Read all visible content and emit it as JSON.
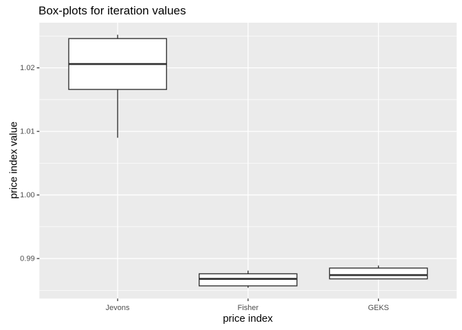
{
  "title": "Box-plots for iteration values",
  "x_axis": {
    "title": "price index",
    "tick_labels": [
      "Jevons",
      "Fisher",
      "GEKS"
    ]
  },
  "y_axis": {
    "title": "price index value",
    "tick_labels": [
      "0.99",
      "1.00",
      "1.01",
      "1.02"
    ],
    "tick_values": [
      0.99,
      1.0,
      1.01,
      1.02
    ],
    "minor_tick_values": [
      0.985,
      0.995,
      1.005,
      1.015,
      1.025
    ]
  },
  "chart_data": {
    "type": "boxplot",
    "title": "Box-plots for iteration values",
    "xlabel": "price index",
    "ylabel": "price index value",
    "categories": [
      "Jevons",
      "Fisher",
      "GEKS"
    ],
    "ylim": [
      0.9837,
      1.0271
    ],
    "grid": true,
    "legend": false,
    "series": [
      {
        "name": "Jevons",
        "whisker_low": 1.009,
        "q1": 1.0166,
        "median": 1.0206,
        "q3": 1.0246,
        "whisker_high": 1.0252
      },
      {
        "name": "Fisher",
        "whisker_low": 0.9854,
        "q1": 0.9857,
        "median": 0.9868,
        "q3": 0.9876,
        "whisker_high": 0.9881
      },
      {
        "name": "GEKS",
        "whisker_low": 0.9868,
        "q1": 0.9868,
        "median": 0.9874,
        "q3": 0.9885,
        "whisker_high": 0.9889
      }
    ],
    "box_width_ratio": 0.75
  },
  "colors": {
    "panel_background": "#EBEBEB",
    "gridline": "#FFFFFF",
    "box_stroke": "#333333",
    "box_fill": "#FFFFFF",
    "tick_mark": "#333333",
    "tick_label": "#4D4D4D",
    "title_text": "#000000"
  }
}
